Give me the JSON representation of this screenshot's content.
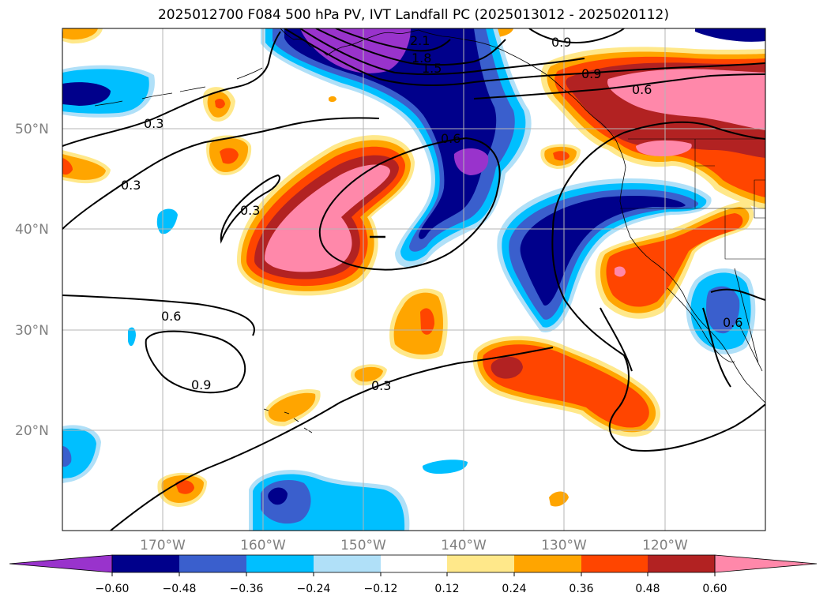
{
  "title": "2025012700 F084 500 hPa PV, IVT Landfall PC (2025013012 - 2025020112)",
  "map": {
    "lon_labels": [
      "170°W",
      "160°W",
      "150°W",
      "140°W",
      "130°W",
      "120°W"
    ],
    "lat_labels": [
      "50°N",
      "40°N",
      "30°N",
      "20°N"
    ],
    "contour_labels": [
      "2.1",
      "1.8",
      "1.5",
      "0.9",
      "0.9",
      "0.6",
      "0.6",
      "0.3",
      "0.3",
      "0.3",
      "0.3",
      "0.6",
      "0.9",
      "0.6"
    ]
  },
  "colorbar": {
    "ticks": [
      "−0.60",
      "−0.48",
      "−0.36",
      "−0.24",
      "−0.12",
      "0.12",
      "0.24",
      "0.36",
      "0.48",
      "0.60"
    ],
    "colors": [
      "#9933cc",
      "#00008b",
      "#3a5fcd",
      "#00bfff",
      "#b0e0f8",
      "#ffffff",
      "#ffe88a",
      "#ffa500",
      "#ff4500",
      "#b22222",
      "#ff88aa"
    ]
  },
  "palette": {
    "pink": "#ff88aa",
    "darkred": "#b22222",
    "red": "#ff4500",
    "orange": "#ffa500",
    "yellow": "#ffe88a",
    "lightblue": "#b0e0f8",
    "cyan": "#00bfff",
    "blue": "#3a5fcd",
    "navy": "#00008b",
    "purple": "#9933cc"
  }
}
